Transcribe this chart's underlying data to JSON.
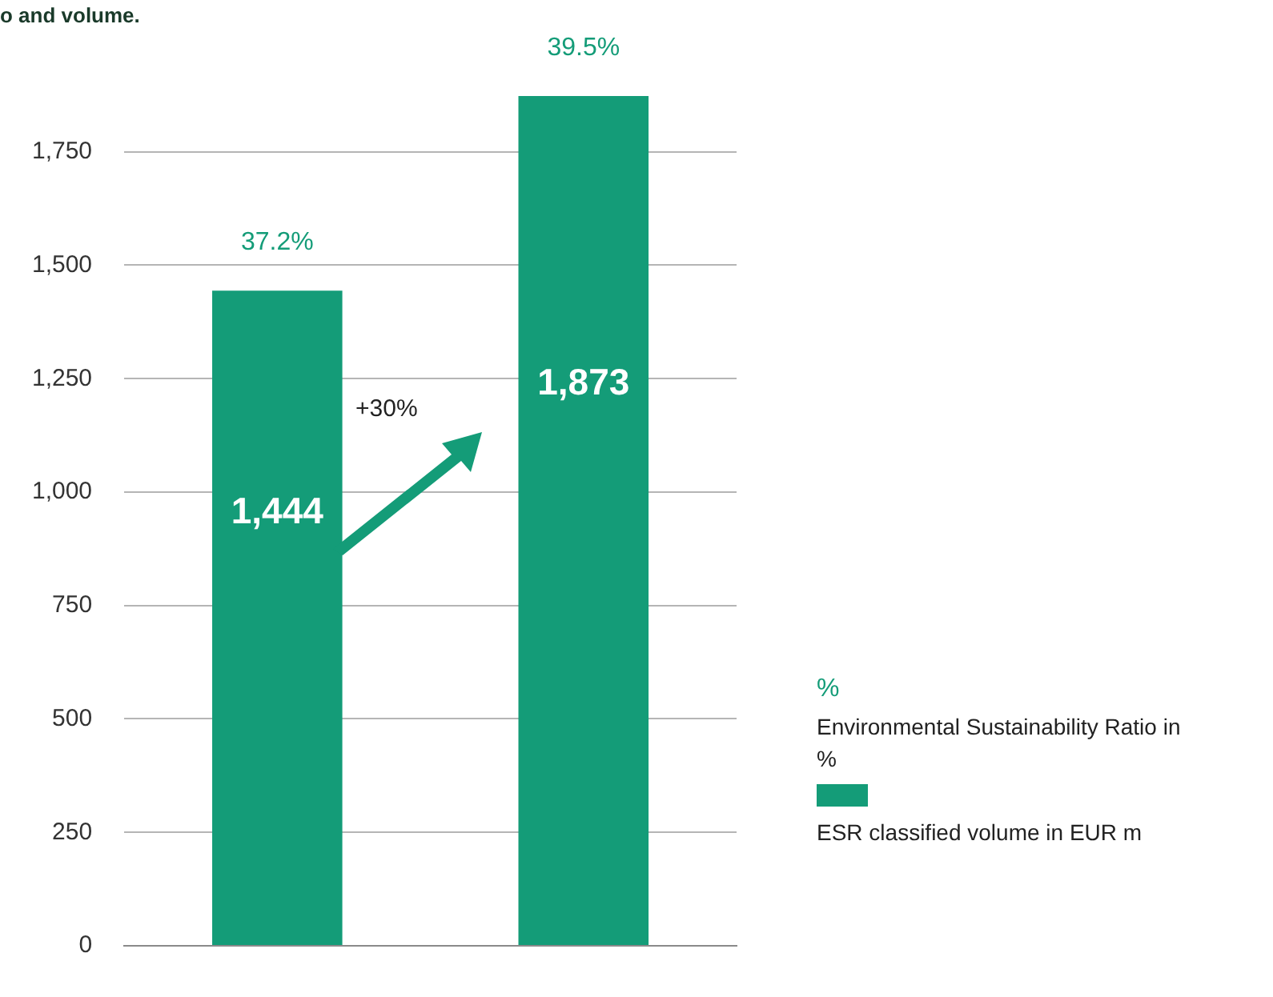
{
  "chart_data": {
    "type": "bar",
    "title": "o and volume.",
    "categories": [
      null,
      null
    ],
    "series": [
      {
        "name": "ESR classified volume in EUR m",
        "color": "#149c78",
        "values": [
          1444,
          1873
        ],
        "value_labels": [
          "1,444",
          "1,873"
        ]
      }
    ],
    "ylim": [
      0,
      1873
    ],
    "yticks": [
      {
        "value": 0,
        "label": "0"
      },
      {
        "value": 250,
        "label": "250"
      },
      {
        "value": 500,
        "label": "500"
      },
      {
        "value": 750,
        "label": "750"
      },
      {
        "value": 1000,
        "label": "1,000"
      },
      {
        "value": 1250,
        "label": "1,250"
      },
      {
        "value": 1500,
        "label": "1,500"
      },
      {
        "value": 1750,
        "label": "1,750"
      }
    ],
    "grid": "y",
    "legend": "right",
    "annotations": [
      "+30%",
      "%",
      "Environmental Sustainability Ratio in %",
      {
        "text": "37.2%",
        "y": 1444
      },
      {
        "text": "39.5%",
        "y": 1873
      }
    ]
  }
}
